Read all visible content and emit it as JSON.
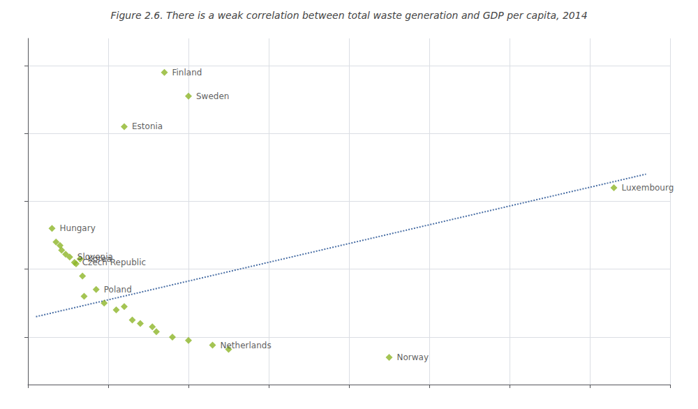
{
  "chart_data": {
    "type": "scatter",
    "title": "Figure 2.6. There is a weak correlation between total waste generation and GDP per capita, 2014",
    "series": [
      {
        "type": "scatter",
        "color": "#8db528",
        "marker": "diamond",
        "x": [
          13000,
          13500,
          14000,
          14200,
          14700,
          15200,
          16500,
          15800,
          16000,
          16800,
          18500,
          19500,
          21000,
          22000,
          23000,
          24000,
          25500,
          26000,
          28000,
          30000,
          33000,
          35000,
          17000,
          55000,
          22000,
          27000,
          30000,
          83000
        ],
        "values": [
          560,
          540,
          535,
          528,
          522,
          518,
          515,
          510,
          508,
          490,
          470,
          450,
          440,
          445,
          425,
          420,
          415,
          408,
          400,
          395,
          388,
          382,
          460,
          370,
          710,
          790,
          755,
          620
        ],
        "labels": [
          "Hungary",
          null,
          null,
          null,
          null,
          "Slovenia",
          "Korea",
          "Czech Republic",
          null,
          null,
          "Poland",
          null,
          null,
          null,
          null,
          null,
          null,
          null,
          null,
          null,
          "Netherlands",
          null,
          null,
          "Norway",
          "Estonia",
          "Finland",
          "Sweden",
          "Luxembourg"
        ]
      },
      {
        "type": "line",
        "color": "#4a6fa5",
        "line_style": "dotted",
        "x": [
          11000,
          87000
        ],
        "values": [
          430,
          640
        ]
      }
    ],
    "xlim": [
      10000,
      90000
    ],
    "ylim": [
      330,
      840
    ],
    "xticks": [
      10000,
      20000,
      30000,
      40000,
      50000,
      60000,
      70000,
      80000,
      90000
    ],
    "yticks": [
      400,
      500,
      600,
      700,
      800
    ],
    "grid": true,
    "tick_labels": false
  }
}
